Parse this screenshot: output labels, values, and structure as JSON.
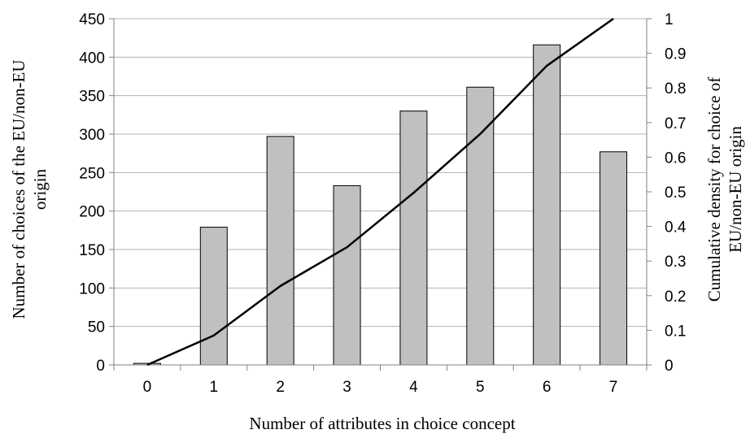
{
  "chart_data": {
    "type": "bar",
    "categories": [
      "0",
      "1",
      "2",
      "3",
      "4",
      "5",
      "6",
      "7"
    ],
    "series": [
      {
        "type": "bar",
        "axis": "left",
        "values": [
          2,
          179,
          297,
          233,
          330,
          361,
          416,
          277
        ]
      },
      {
        "type": "line",
        "axis": "right",
        "values": [
          0,
          0.085,
          0.228,
          0.34,
          0.497,
          0.667,
          0.864,
          1.0
        ]
      }
    ],
    "xlabel": "Number of attributes in choice concept",
    "ylabel": [
      "Number of choices of the EU/non-EU",
      "origin"
    ],
    "y2label": [
      "Cumulative density  for choice of",
      "EU/non-EU origin"
    ],
    "ylim": [
      0,
      450
    ],
    "y2lim": [
      0,
      1
    ],
    "yticks": [
      "0",
      "50",
      "100",
      "150",
      "200",
      "250",
      "300",
      "350",
      "400",
      "450"
    ],
    "y2ticks": [
      "0",
      "0.1",
      "0.2",
      "0.3",
      "0.4",
      "0.5",
      "0.6",
      "0.7",
      "0.8",
      "0.9",
      "1"
    ],
    "grid": "horizontal",
    "legend": "none",
    "colors": {
      "bar_fill": "#c0c0c0",
      "bar_stroke": "#000000",
      "line": "#000000",
      "grid": "#b3b3b3",
      "axis": "#808080"
    }
  }
}
